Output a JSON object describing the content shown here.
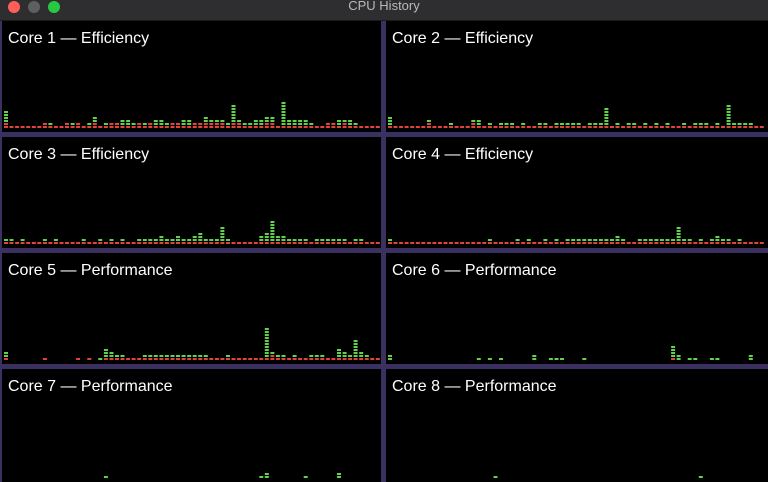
{
  "window": {
    "title": "CPU History",
    "buttons": {
      "close": "close",
      "minimize": "minimize",
      "zoom": "zoom"
    }
  },
  "colors": {
    "user": "#5fd34a",
    "system": "#e0443a",
    "background": "#000000",
    "divider": "#3a3160"
  },
  "cores": [
    {
      "label": "Core 1 — Efficiency",
      "system": [
        2,
        1,
        1,
        1,
        1,
        1,
        1,
        2,
        1,
        1,
        1,
        2,
        1,
        2,
        1,
        1,
        2,
        1,
        1,
        2,
        2,
        1,
        1,
        1,
        2,
        1,
        2,
        1,
        1,
        1,
        2,
        2,
        1,
        1,
        2,
        2,
        2,
        2,
        2,
        2,
        1,
        2,
        2,
        1,
        1,
        1,
        1,
        2,
        2,
        1,
        1,
        1,
        1,
        1,
        1,
        1,
        1,
        1,
        2,
        2,
        1,
        2,
        1,
        1,
        1,
        1,
        1,
        1
      ],
      "user": [
        4,
        0,
        0,
        0,
        0,
        0,
        0,
        0,
        1,
        0,
        0,
        0,
        1,
        0,
        0,
        1,
        2,
        0,
        1,
        0,
        0,
        2,
        2,
        1,
        0,
        1,
        0,
        2,
        2,
        1,
        0,
        0,
        2,
        2,
        0,
        0,
        2,
        1,
        1,
        1,
        1,
        6,
        1,
        1,
        1,
        2,
        2,
        2,
        2,
        0,
        8,
        2,
        2,
        2,
        2,
        1,
        0,
        0,
        0,
        0,
        2,
        1,
        2,
        1,
        0,
        0,
        0,
        0
      ]
    },
    {
      "label": "Core 2 — Efficiency",
      "system": [
        1,
        1,
        1,
        1,
        1,
        1,
        1,
        2,
        1,
        1,
        1,
        1,
        1,
        1,
        1,
        2,
        1,
        1,
        1,
        1,
        1,
        1,
        1,
        1,
        1,
        1,
        1,
        1,
        1,
        1,
        1,
        1,
        1,
        1,
        1,
        1,
        1,
        1,
        1,
        1,
        1,
        1,
        1,
        1,
        1,
        1,
        1,
        1,
        1,
        1,
        1,
        1,
        1,
        1,
        1,
        1,
        1,
        1,
        1,
        1,
        1,
        1,
        1,
        1,
        1,
        1,
        1,
        1
      ],
      "user": [
        3,
        0,
        0,
        0,
        0,
        0,
        0,
        1,
        0,
        0,
        0,
        1,
        0,
        0,
        0,
        1,
        2,
        0,
        1,
        0,
        1,
        1,
        1,
        0,
        1,
        0,
        0,
        1,
        1,
        0,
        1,
        1,
        1,
        1,
        1,
        0,
        1,
        1,
        1,
        6,
        0,
        1,
        0,
        1,
        1,
        0,
        1,
        0,
        1,
        0,
        1,
        0,
        0,
        1,
        0,
        1,
        1,
        1,
        0,
        1,
        0,
        7,
        1,
        1,
        1,
        1,
        0,
        0
      ]
    },
    {
      "label": "Core 3 — Efficiency",
      "system": [
        1,
        1,
        1,
        1,
        1,
        1,
        1,
        1,
        1,
        1,
        1,
        1,
        1,
        1,
        1,
        1,
        1,
        1,
        1,
        1,
        1,
        1,
        1,
        1,
        1,
        1,
        1,
        1,
        1,
        1,
        1,
        1,
        1,
        1,
        1,
        1,
        1,
        1,
        1,
        1,
        1,
        1,
        1,
        1,
        1,
        1,
        1,
        1,
        1,
        1,
        1,
        1,
        1,
        1,
        1,
        1,
        1,
        1,
        1,
        1,
        1,
        1,
        1,
        1,
        1,
        1,
        1,
        1
      ],
      "user": [
        1,
        1,
        0,
        1,
        0,
        0,
        0,
        1,
        0,
        1,
        0,
        0,
        0,
        0,
        1,
        0,
        0,
        1,
        0,
        1,
        0,
        1,
        0,
        0,
        1,
        1,
        1,
        1,
        2,
        1,
        1,
        2,
        1,
        1,
        2,
        3,
        1,
        1,
        1,
        5,
        1,
        0,
        0,
        0,
        0,
        0,
        2,
        3,
        7,
        2,
        2,
        1,
        1,
        1,
        1,
        0,
        1,
        1,
        1,
        1,
        1,
        1,
        0,
        1,
        1,
        0,
        0,
        0
      ]
    },
    {
      "label": "Core 4 — Efficiency",
      "system": [
        1,
        1,
        1,
        1,
        1,
        1,
        1,
        1,
        1,
        1,
        1,
        1,
        1,
        1,
        1,
        1,
        1,
        1,
        1,
        1,
        1,
        1,
        1,
        1,
        1,
        1,
        1,
        1,
        1,
        1,
        1,
        1,
        1,
        1,
        1,
        1,
        1,
        1,
        1,
        1,
        1,
        1,
        1,
        1,
        1,
        1,
        1,
        1,
        1,
        1,
        1,
        1,
        1,
        1,
        1,
        1,
        1,
        1,
        1,
        1,
        1,
        1,
        1,
        1,
        1,
        1,
        1,
        1
      ],
      "user": [
        1,
        0,
        0,
        0,
        0,
        0,
        0,
        0,
        0,
        0,
        0,
        0,
        0,
        0,
        0,
        0,
        0,
        0,
        1,
        0,
        0,
        0,
        0,
        1,
        0,
        1,
        0,
        0,
        1,
        0,
        1,
        0,
        1,
        1,
        1,
        1,
        1,
        1,
        1,
        1,
        1,
        2,
        1,
        0,
        0,
        1,
        1,
        1,
        1,
        1,
        1,
        1,
        5,
        1,
        1,
        0,
        1,
        0,
        1,
        2,
        1,
        1,
        0,
        1,
        0,
        0,
        0,
        0
      ]
    },
    {
      "label": "Core 5 — Performance",
      "system": [
        1,
        0,
        0,
        0,
        0,
        0,
        0,
        1,
        0,
        0,
        0,
        0,
        0,
        1,
        0,
        1,
        0,
        0,
        1,
        1,
        1,
        1,
        1,
        1,
        1,
        1,
        1,
        1,
        1,
        1,
        1,
        1,
        1,
        1,
        1,
        1,
        1,
        1,
        1,
        1,
        1,
        1,
        1,
        1,
        1,
        1,
        1,
        1,
        2,
        1,
        1,
        1,
        1,
        1,
        1,
        1,
        1,
        1,
        1,
        1,
        1,
        1,
        1,
        1,
        1,
        1,
        1,
        1
      ],
      "user": [
        2,
        0,
        0,
        0,
        0,
        0,
        0,
        0,
        0,
        0,
        0,
        0,
        0,
        0,
        0,
        0,
        0,
        1,
        3,
        2,
        1,
        1,
        0,
        0,
        0,
        1,
        1,
        1,
        1,
        1,
        1,
        1,
        1,
        1,
        1,
        1,
        1,
        0,
        0,
        0,
        1,
        0,
        0,
        0,
        0,
        0,
        0,
        10,
        1,
        1,
        1,
        0,
        1,
        0,
        0,
        1,
        1,
        1,
        0,
        0,
        3,
        2,
        1,
        6,
        2,
        1,
        0,
        0
      ]
    },
    {
      "label": "Core 6 — Performance",
      "system": [
        0,
        0,
        0,
        0,
        0,
        0,
        0,
        0,
        0,
        0,
        0,
        0,
        0,
        0,
        0,
        0,
        0,
        0,
        0,
        0,
        0,
        0,
        0,
        0,
        0,
        0,
        0,
        0,
        0,
        0,
        0,
        0,
        0,
        0,
        0,
        0,
        0,
        0,
        0,
        0,
        0,
        0,
        0,
        0,
        0,
        0,
        0,
        0,
        0,
        0,
        0,
        1,
        0,
        0,
        0,
        0,
        0,
        0,
        0,
        0,
        0,
        0,
        0,
        0,
        0,
        0,
        0,
        0
      ],
      "user": [
        2,
        0,
        0,
        0,
        0,
        0,
        0,
        0,
        0,
        0,
        0,
        0,
        0,
        0,
        0,
        0,
        1,
        0,
        1,
        0,
        1,
        0,
        0,
        0,
        0,
        0,
        2,
        0,
        0,
        1,
        1,
        1,
        0,
        0,
        0,
        1,
        0,
        0,
        0,
        0,
        0,
        0,
        0,
        0,
        0,
        0,
        0,
        0,
        0,
        0,
        0,
        4,
        2,
        0,
        1,
        1,
        0,
        0,
        1,
        1,
        0,
        0,
        0,
        0,
        0,
        2,
        0,
        0
      ]
    },
    {
      "label": "Core 7 — Performance",
      "system": [
        0,
        0,
        0,
        0,
        0,
        0,
        0,
        0,
        0,
        0,
        0,
        0,
        0,
        0,
        0,
        0,
        0,
        0,
        0,
        0,
        0,
        0,
        0,
        0,
        0,
        0,
        0,
        0,
        0,
        0,
        0,
        0,
        0,
        0,
        0,
        0,
        0,
        0,
        0,
        0,
        0,
        0,
        0,
        0,
        0,
        0,
        0,
        0,
        0,
        0,
        0,
        0,
        0,
        0,
        0,
        0,
        0,
        0,
        0,
        0,
        0,
        0,
        0,
        0,
        0,
        0,
        0,
        0
      ],
      "user": [
        0,
        0,
        0,
        0,
        0,
        0,
        0,
        0,
        0,
        0,
        0,
        0,
        0,
        0,
        0,
        0,
        0,
        0,
        1,
        0,
        0,
        0,
        0,
        0,
        0,
        0,
        0,
        0,
        0,
        0,
        0,
        0,
        0,
        0,
        0,
        0,
        0,
        0,
        0,
        0,
        0,
        0,
        0,
        0,
        0,
        0,
        1,
        2,
        0,
        0,
        0,
        0,
        0,
        0,
        1,
        0,
        0,
        0,
        0,
        0,
        2,
        0,
        0,
        0,
        0,
        0,
        0,
        0
      ]
    },
    {
      "label": "Core 8 — Performance",
      "system": [
        0,
        0,
        0,
        0,
        0,
        0,
        0,
        0,
        0,
        0,
        0,
        0,
        0,
        0,
        0,
        0,
        0,
        0,
        0,
        0,
        0,
        0,
        0,
        0,
        0,
        0,
        0,
        0,
        0,
        0,
        0,
        0,
        0,
        0,
        0,
        0,
        0,
        0,
        0,
        0,
        0,
        0,
        0,
        0,
        0,
        0,
        0,
        0,
        0,
        0,
        0,
        0,
        0,
        0,
        0,
        0,
        0,
        0,
        0,
        0,
        0,
        0,
        0,
        0,
        0,
        0,
        0,
        0
      ],
      "user": [
        0,
        0,
        0,
        0,
        0,
        0,
        0,
        0,
        0,
        0,
        0,
        0,
        0,
        0,
        0,
        0,
        0,
        0,
        0,
        1,
        0,
        0,
        0,
        0,
        0,
        0,
        0,
        0,
        0,
        0,
        0,
        0,
        0,
        0,
        0,
        0,
        0,
        0,
        0,
        0,
        0,
        0,
        0,
        0,
        0,
        0,
        0,
        0,
        0,
        0,
        0,
        0,
        0,
        0,
        0,
        0,
        1,
        0,
        0,
        0,
        0,
        0,
        0,
        0,
        0,
        0,
        0,
        0
      ]
    }
  ]
}
